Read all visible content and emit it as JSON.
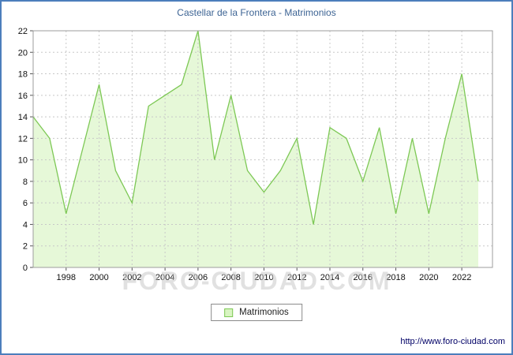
{
  "title": "Castellar de la Frontera - Matrimonios",
  "watermark": "FORO-CIUDAD.COM",
  "legend": {
    "label": "Matrimonios"
  },
  "footer": {
    "url": "http://www.foro-ciudad.com"
  },
  "colors": {
    "frame_border": "#4c7ebc",
    "title_text": "#3d6494",
    "grid": "#c8c8c8",
    "plot_border": "#9e9e9e",
    "line": "#7dc855",
    "fill": "#e6f8d8",
    "axis_text": "#111111",
    "url_text": "#000066",
    "watermark_text": "#c9c9c9"
  },
  "chart_data": {
    "type": "area",
    "title": "Castellar de la Frontera - Matrimonios",
    "series_name": "Matrimonios",
    "xlabel": "",
    "ylabel": "",
    "x": [
      1996,
      1997,
      1998,
      1999,
      2000,
      2001,
      2002,
      2003,
      2004,
      2005,
      2006,
      2007,
      2008,
      2009,
      2010,
      2011,
      2012,
      2013,
      2014,
      2015,
      2016,
      2017,
      2018,
      2019,
      2020,
      2021,
      2022,
      2023
    ],
    "values": [
      14,
      12,
      5,
      11,
      17,
      9,
      6,
      15,
      16,
      17,
      22,
      10,
      16,
      9,
      7,
      9,
      12,
      4,
      13,
      12,
      8,
      13,
      5,
      12,
      5,
      12,
      18,
      8
    ],
    "xticks": [
      1998,
      2000,
      2002,
      2004,
      2006,
      2008,
      2010,
      2012,
      2014,
      2016,
      2018,
      2020,
      2022
    ],
    "ylim": [
      0,
      22
    ],
    "ytick_step": 2,
    "grid": true,
    "legend_position": "bottom-center"
  }
}
